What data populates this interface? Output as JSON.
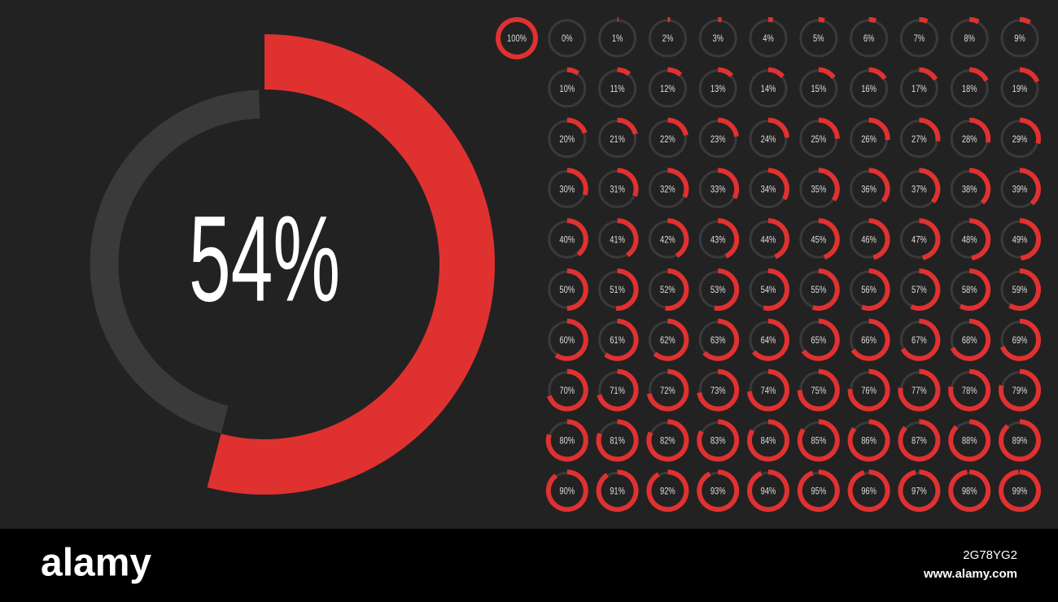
{
  "chart_data": [
    {
      "type": "gauge",
      "values": [
        54
      ],
      "value_labels": [
        "54%"
      ],
      "color": "#e03131",
      "track_color": "#3a3a3a"
    },
    {
      "type": "gauge",
      "values": [
        100,
        0,
        1,
        2,
        3,
        4,
        5,
        6,
        7,
        8,
        9,
        10,
        11,
        12,
        13,
        14,
        15,
        16,
        17,
        18,
        19,
        20,
        21,
        22,
        23,
        24,
        25,
        26,
        27,
        28,
        29,
        30,
        31,
        32,
        33,
        34,
        35,
        36,
        37,
        38,
        39,
        40,
        41,
        42,
        43,
        44,
        45,
        46,
        47,
        48,
        49,
        50,
        51,
        52,
        53,
        54,
        55,
        56,
        57,
        58,
        59,
        60,
        61,
        62,
        63,
        64,
        65,
        66,
        67,
        68,
        69,
        70,
        71,
        72,
        73,
        74,
        75,
        76,
        77,
        78,
        79,
        80,
        81,
        82,
        83,
        84,
        85,
        86,
        87,
        88,
        89,
        90,
        91,
        92,
        93,
        94,
        95,
        96,
        97,
        98,
        99
      ],
      "value_labels": [
        "100%",
        "0%",
        "1%",
        "2%",
        "3%",
        "4%",
        "5%",
        "6%",
        "7%",
        "8%",
        "9%",
        "10%",
        "11%",
        "12%",
        "13%",
        "14%",
        "15%",
        "16%",
        "17%",
        "18%",
        "19%",
        "20%",
        "21%",
        "22%",
        "23%",
        "24%",
        "25%",
        "26%",
        "27%",
        "28%",
        "29%",
        "30%",
        "31%",
        "32%",
        "33%",
        "34%",
        "35%",
        "36%",
        "37%",
        "38%",
        "39%",
        "40%",
        "41%",
        "42%",
        "43%",
        "44%",
        "45%",
        "46%",
        "47%",
        "48%",
        "49%",
        "50%",
        "51%",
        "52%",
        "53%",
        "54%",
        "55%",
        "56%",
        "57%",
        "58%",
        "59%",
        "60%",
        "61%",
        "62%",
        "63%",
        "64%",
        "65%",
        "66%",
        "67%",
        "68%",
        "69%",
        "70%",
        "71%",
        "72%",
        "73%",
        "74%",
        "75%",
        "76%",
        "77%",
        "78%",
        "79%",
        "80%",
        "81%",
        "82%",
        "83%",
        "84%",
        "85%",
        "86%",
        "87%",
        "88%",
        "89%",
        "90%",
        "91%",
        "92%",
        "93%",
        "94%",
        "95%",
        "96%",
        "97%",
        "98%",
        "99%"
      ],
      "color": "#e03131",
      "track_color": "#3a3a3a"
    }
  ],
  "watermark": {
    "brand": "alamy",
    "id": "2G78YG2",
    "url": "www.alamy.com"
  }
}
